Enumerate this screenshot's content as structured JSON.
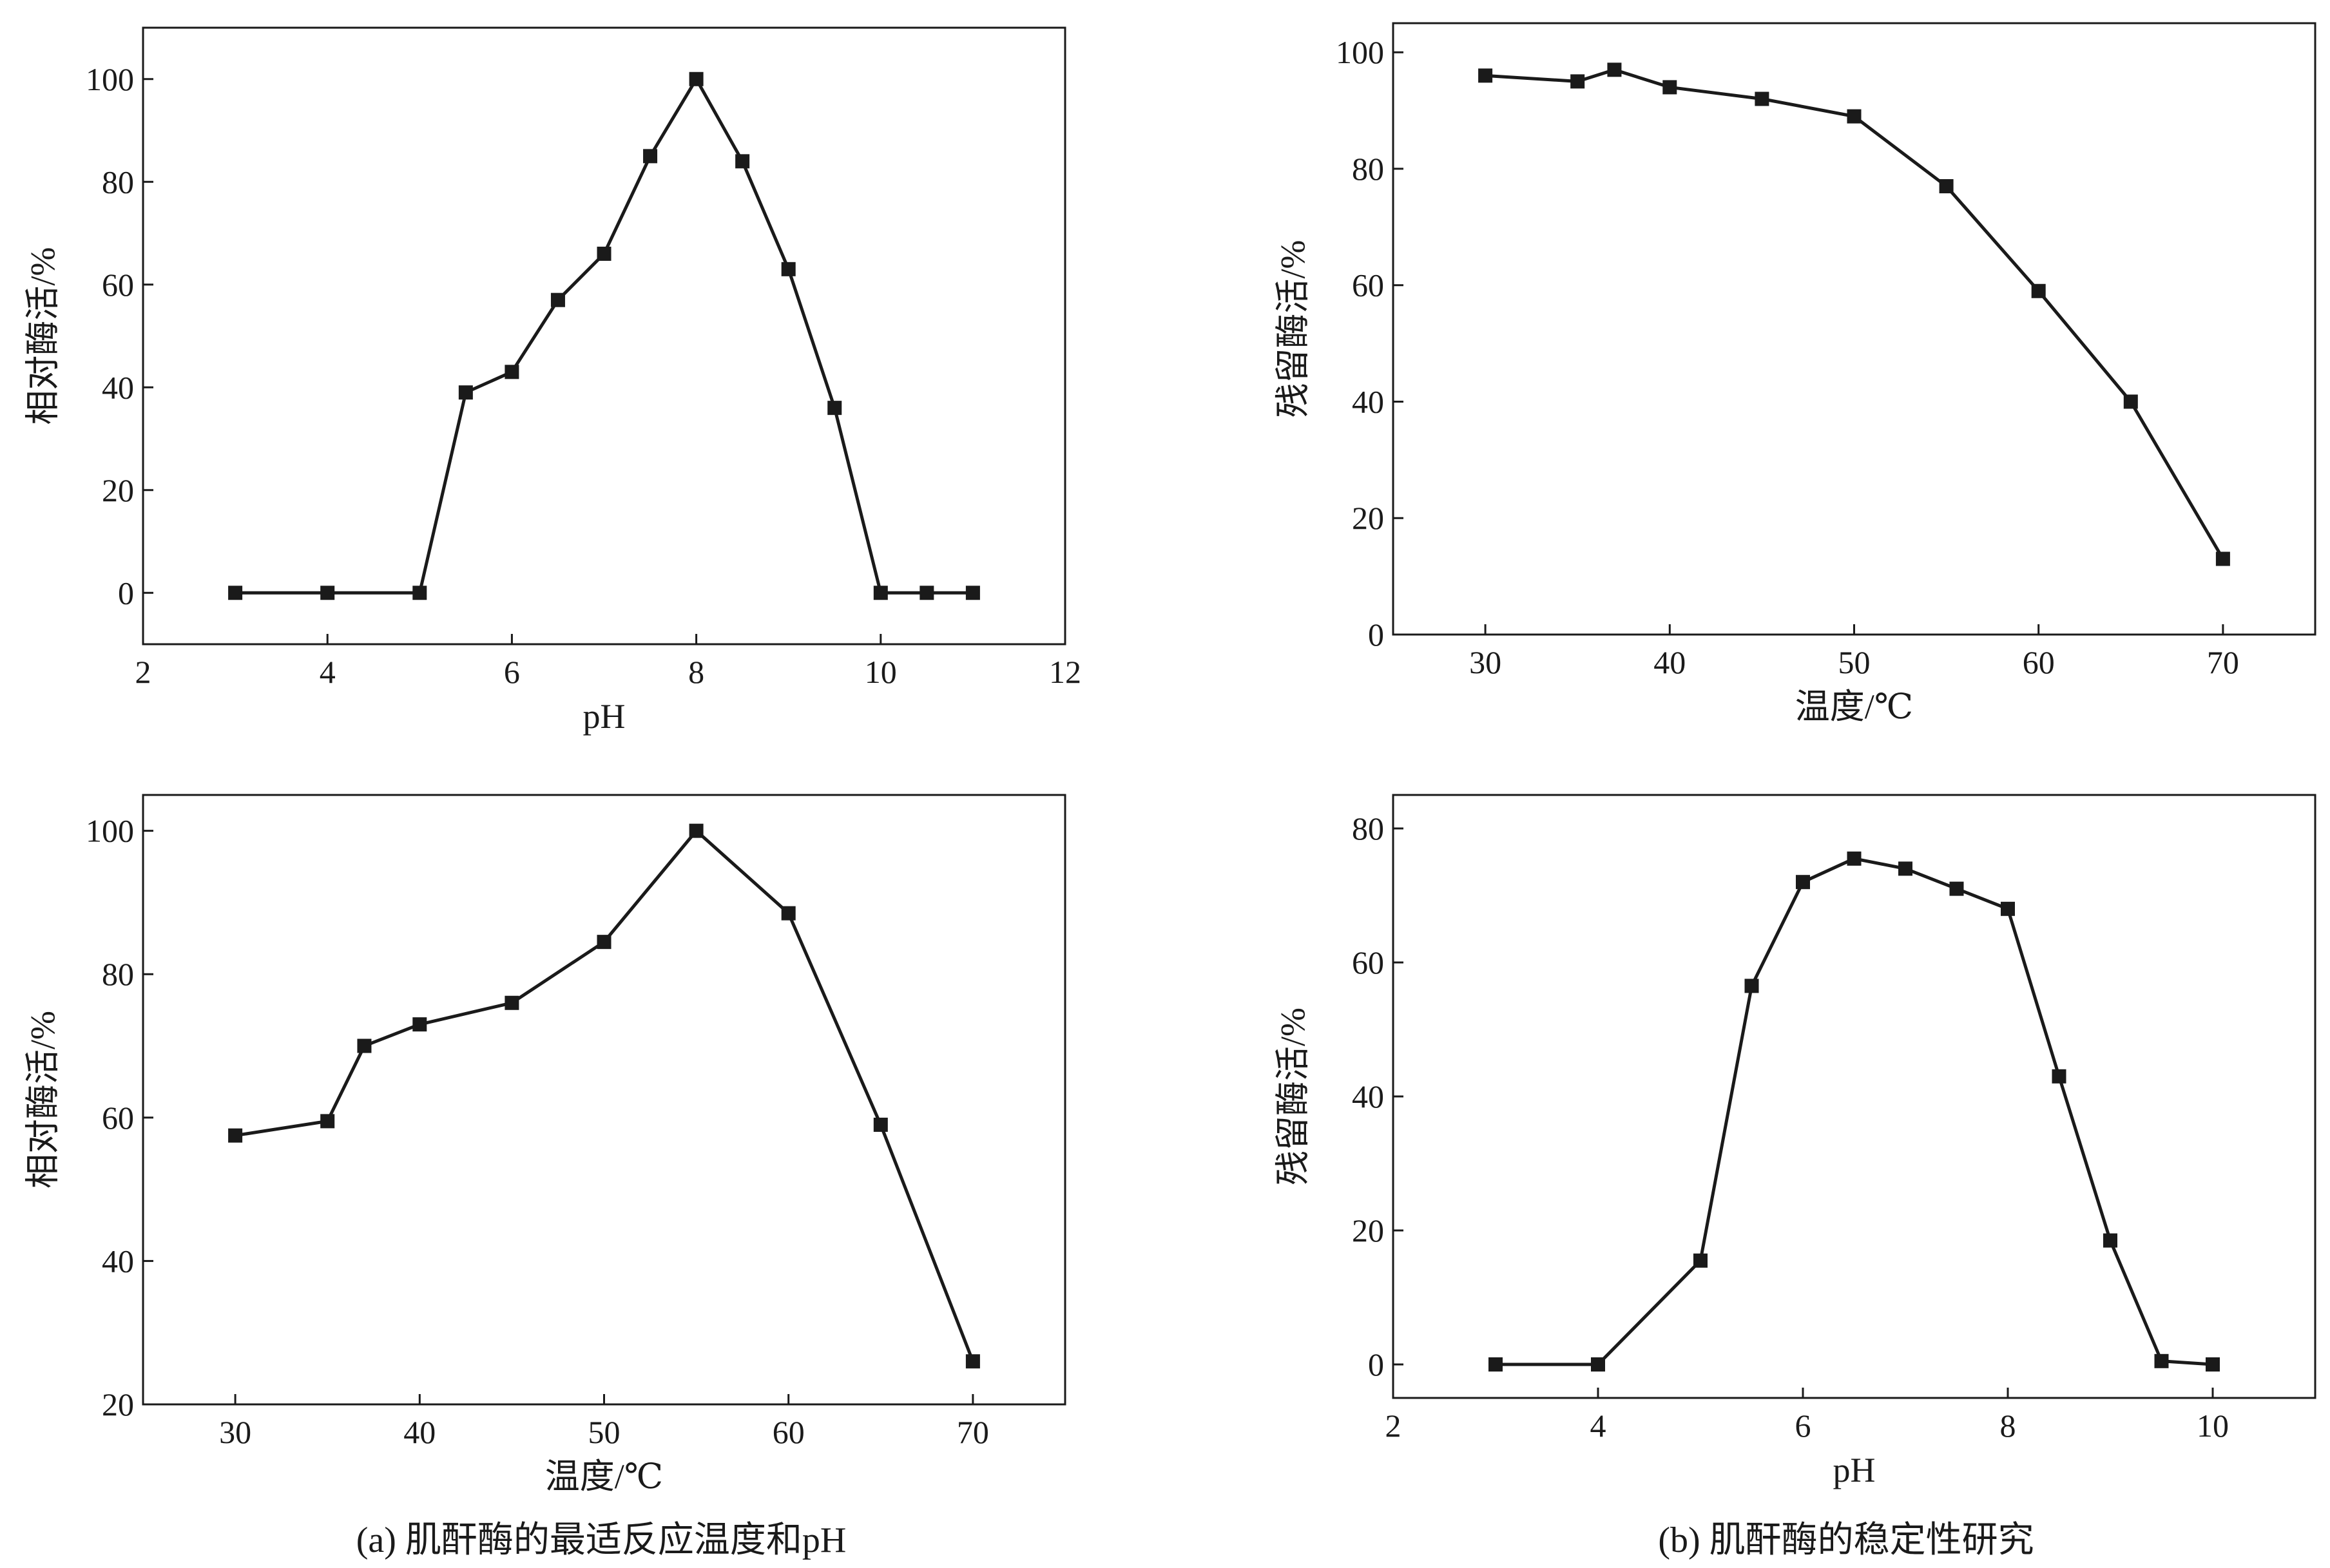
{
  "chart_data": [
    {
      "id": "a-top",
      "type": "line",
      "xlabel": "pH",
      "ylabel": "相对酶活/%",
      "xlim": [
        2,
        12
      ],
      "ylim": [
        -10,
        110
      ],
      "xticks": [
        2,
        4,
        6,
        8,
        10,
        12
      ],
      "yticks": [
        0,
        20,
        40,
        60,
        80,
        100
      ],
      "grid": false,
      "marker": "square",
      "x": [
        3,
        4,
        5,
        5.5,
        6,
        6.5,
        7,
        7.5,
        8,
        8.5,
        9,
        9.5,
        10,
        10.5,
        11
      ],
      "y": [
        0,
        0,
        0,
        39,
        43,
        57,
        66,
        85,
        100,
        84,
        63,
        36,
        0,
        0,
        0
      ]
    },
    {
      "id": "b-top",
      "type": "line",
      "xlabel": "温度/℃",
      "ylabel": "残留酶活/%",
      "xlim": [
        25,
        75
      ],
      "ylim": [
        0,
        105
      ],
      "xticks": [
        30,
        40,
        50,
        60,
        70
      ],
      "yticks": [
        0,
        20,
        40,
        60,
        80,
        100
      ],
      "grid": false,
      "marker": "square",
      "x": [
        30,
        35,
        37,
        40,
        45,
        50,
        55,
        60,
        65,
        70
      ],
      "y": [
        96,
        95,
        97,
        94,
        92,
        89,
        77,
        59,
        40,
        13
      ]
    },
    {
      "id": "a-bottom",
      "type": "line",
      "xlabel": "温度/℃",
      "ylabel": "相对酶活/%",
      "xlim": [
        25,
        75
      ],
      "ylim": [
        20,
        105
      ],
      "xticks": [
        30,
        40,
        50,
        60,
        70
      ],
      "yticks": [
        20,
        40,
        60,
        80,
        100
      ],
      "grid": false,
      "marker": "square",
      "x": [
        30,
        35,
        37,
        40,
        45,
        50,
        55,
        60,
        65,
        70
      ],
      "y": [
        57.5,
        59.5,
        70,
        73,
        76,
        84.5,
        100,
        88.5,
        59,
        26
      ]
    },
    {
      "id": "b-bottom",
      "type": "line",
      "xlabel": "pH",
      "ylabel": "残留酶活/%",
      "xlim": [
        2,
        11
      ],
      "ylim": [
        -5,
        85
      ],
      "xticks": [
        2,
        4,
        6,
        8,
        10
      ],
      "yticks": [
        0,
        20,
        40,
        60,
        80
      ],
      "grid": false,
      "marker": "square",
      "x": [
        3,
        4,
        5,
        5.5,
        6,
        6.5,
        7,
        7.5,
        8,
        8.5,
        9,
        9.5,
        10
      ],
      "y": [
        0,
        0,
        15.5,
        56.5,
        72,
        75.5,
        74,
        71,
        68,
        43,
        18.5,
        0.5,
        0
      ]
    }
  ],
  "captions": {
    "a": "(a) 肌酐酶的最适反应温度和pH",
    "b": "(b) 肌酐酶的稳定性研究"
  }
}
